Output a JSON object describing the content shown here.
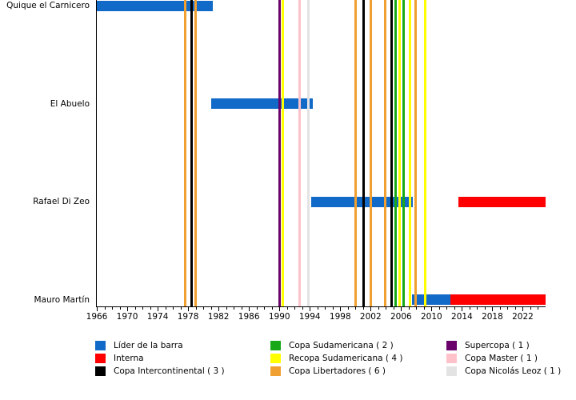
{
  "chart_data": {
    "type": "bar",
    "subtype": "horizontal-timeline-gantt",
    "title": "",
    "x_axis": {
      "min": 1966,
      "max": 2025,
      "major_ticks": [
        1966,
        1970,
        1974,
        1978,
        1982,
        1986,
        1990,
        1994,
        1998,
        2002,
        2006,
        2010,
        2014,
        2018,
        2022
      ],
      "minor_step": 1,
      "grid": false
    },
    "rows": [
      "Quique el Carnicero",
      "El Abuelo",
      "Rafael Di Zeo",
      "Mauro Martín"
    ],
    "bars": [
      {
        "row": 0,
        "start": 1966.0,
        "end": 1981.3,
        "category": "lider"
      },
      {
        "row": 1,
        "start": 1981.0,
        "end": 1994.4,
        "category": "lider"
      },
      {
        "row": 2,
        "start": 1994.2,
        "end": 2007.5,
        "category": "lider"
      },
      {
        "row": 2,
        "start": 2013.5,
        "end": 2025.0,
        "category": "interna"
      },
      {
        "row": 3,
        "start": 2007.4,
        "end": 2012.5,
        "category": "lider"
      },
      {
        "row": 3,
        "start": 2012.5,
        "end": 2025.0,
        "category": "interna"
      }
    ],
    "events": [
      {
        "category": "copa_libertadores",
        "year": 1977.6
      },
      {
        "category": "copa_intercontinental",
        "year": 1978.5
      },
      {
        "category": "copa_libertadores",
        "year": 1978.95
      },
      {
        "category": "supercopa",
        "year": 1990.0
      },
      {
        "category": "recopa_sudamericana",
        "year": 1990.45
      },
      {
        "category": "copa_master",
        "year": 1992.65
      },
      {
        "category": "copa_nicolas_leoz",
        "year": 1993.8
      },
      {
        "category": "copa_libertadores",
        "year": 2000.0
      },
      {
        "category": "copa_intercontinental",
        "year": 2001.1
      },
      {
        "category": "copa_libertadores",
        "year": 2002.05
      },
      {
        "category": "copa_libertadores",
        "year": 2003.95
      },
      {
        "category": "copa_intercontinental",
        "year": 2004.75
      },
      {
        "category": "copa_sudamericana",
        "year": 2005.3
      },
      {
        "category": "recopa_sudamericana",
        "year": 2005.8
      },
      {
        "category": "copa_sudamericana",
        "year": 2006.35
      },
      {
        "category": "recopa_sudamericana",
        "year": 2007.2
      },
      {
        "category": "copa_libertadores",
        "year": 2007.95
      },
      {
        "category": "recopa_sudamericana",
        "year": 2009.2
      }
    ],
    "colors": {
      "lider": "#1169c8",
      "interna": "#fe0000",
      "copa_intercontinental": "#000000",
      "copa_sudamericana": "#18a818",
      "recopa_sudamericana": "#ffff00",
      "copa_libertadores": "#f0a030",
      "supercopa": "#6a006a",
      "copa_master": "#ffc2cb",
      "copa_nicolas_leoz": "#e3e3e3"
    }
  },
  "legend": {
    "columns": [
      [
        {
          "key": "lider",
          "label": "Líder de la barra"
        },
        {
          "key": "interna",
          "label": "Interna"
        },
        {
          "key": "copa_intercontinental",
          "label": "Copa Intercontinental ( 3 )"
        }
      ],
      [
        {
          "key": "copa_sudamericana",
          "label": "Copa Sudamericana ( 2 )"
        },
        {
          "key": "recopa_sudamericana",
          "label": "Recopa Sudamericana ( 4 )"
        },
        {
          "key": "copa_libertadores",
          "label": "Copa Libertadores ( 6 )"
        }
      ],
      [
        {
          "key": "supercopa",
          "label": "Supercopa ( 1 )"
        },
        {
          "key": "copa_master",
          "label": "Copa Master ( 1 )"
        },
        {
          "key": "copa_nicolas_leoz",
          "label": "Copa Nicolás Leoz ( 1 )"
        }
      ]
    ]
  }
}
